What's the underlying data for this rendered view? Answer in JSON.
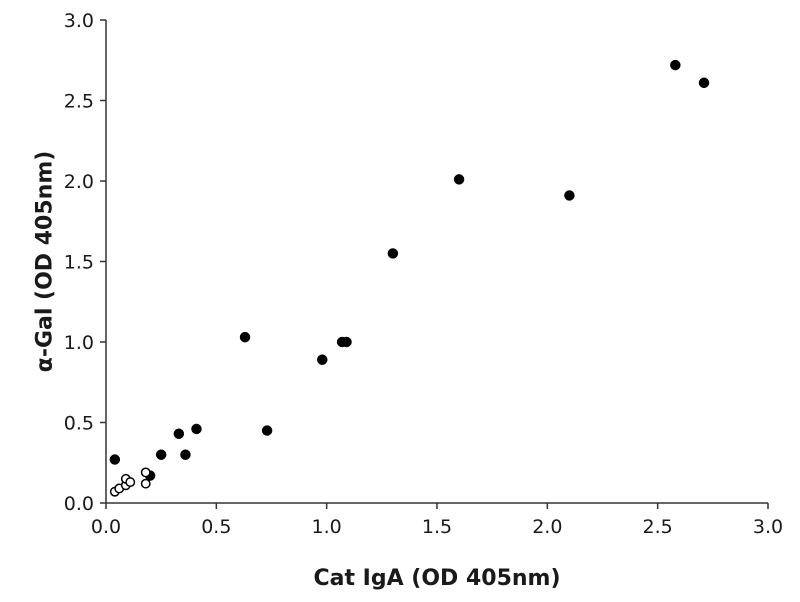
{
  "chart_data": {
    "type": "scatter",
    "title": "",
    "xlabel": "Cat IgA (OD 405nm)",
    "ylabel": "α-Gal (OD 405nm)",
    "xlim": [
      0,
      3.0
    ],
    "ylim": [
      0,
      3.0
    ],
    "x_ticks": [
      "0.0",
      "0.5",
      "1.0",
      "1.5",
      "2.0",
      "2.5",
      "3.0"
    ],
    "y_ticks": [
      "0.0",
      "0.5",
      "1.0",
      "1.5",
      "2.0",
      "2.5",
      "3.0"
    ],
    "grid": false,
    "legend": false,
    "series": [
      {
        "marker": "filled-circle",
        "color": "#000000",
        "points": [
          {
            "x": 0.04,
            "y": 0.27
          },
          {
            "x": 0.2,
            "y": 0.17
          },
          {
            "x": 0.25,
            "y": 0.3
          },
          {
            "x": 0.33,
            "y": 0.43
          },
          {
            "x": 0.36,
            "y": 0.3
          },
          {
            "x": 0.41,
            "y": 0.46
          },
          {
            "x": 0.63,
            "y": 1.03
          },
          {
            "x": 0.73,
            "y": 0.45
          },
          {
            "x": 0.98,
            "y": 0.89
          },
          {
            "x": 1.07,
            "y": 1.0
          },
          {
            "x": 1.09,
            "y": 1.0
          },
          {
            "x": 1.3,
            "y": 1.55
          },
          {
            "x": 1.6,
            "y": 2.01
          },
          {
            "x": 2.1,
            "y": 1.91
          },
          {
            "x": 2.58,
            "y": 2.72
          },
          {
            "x": 2.71,
            "y": 2.61
          }
        ]
      },
      {
        "marker": "open-circle",
        "color": "#000000",
        "points": [
          {
            "x": 0.04,
            "y": 0.07
          },
          {
            "x": 0.06,
            "y": 0.09
          },
          {
            "x": 0.09,
            "y": 0.11
          },
          {
            "x": 0.09,
            "y": 0.15
          },
          {
            "x": 0.11,
            "y": 0.13
          },
          {
            "x": 0.18,
            "y": 0.12
          },
          {
            "x": 0.18,
            "y": 0.19
          }
        ]
      }
    ]
  }
}
